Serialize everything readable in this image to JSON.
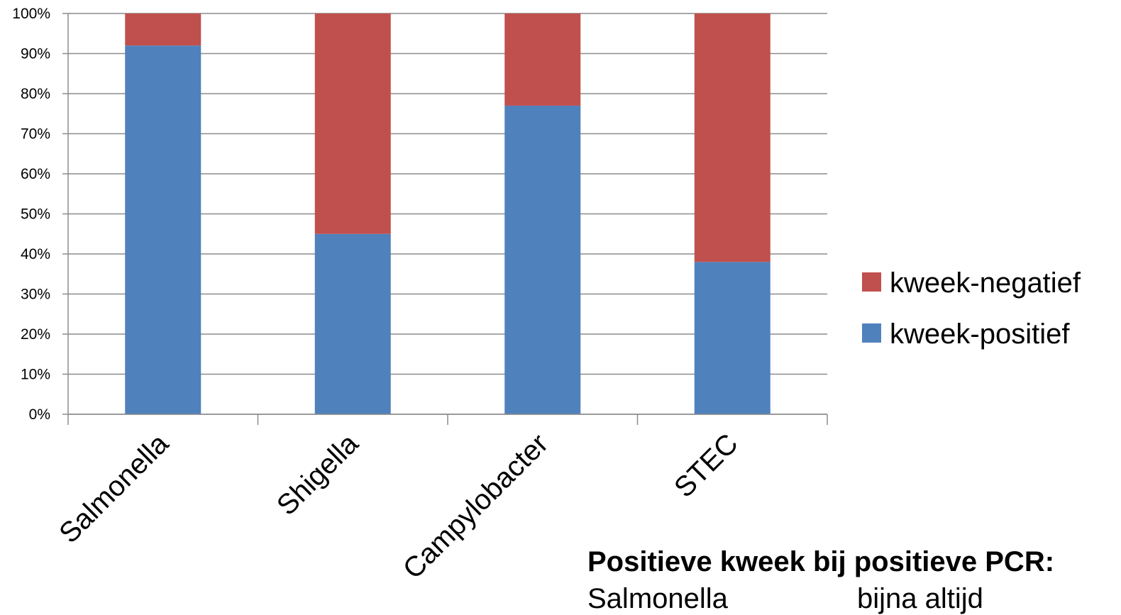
{
  "chart_data": {
    "type": "bar",
    "stacked": true,
    "categories": [
      "Salmonella",
      "Shigella",
      "Campylobacter",
      "STEC"
    ],
    "series": [
      {
        "name": "kweek-positief",
        "values": [
          92,
          45,
          77,
          38
        ],
        "color": "#4f81bd"
      },
      {
        "name": "kweek-negatief",
        "values": [
          8,
          55,
          23,
          62
        ],
        "color": "#c0504d"
      }
    ],
    "yticks": [
      "0%",
      "10%",
      "20%",
      "30%",
      "40%",
      "50%",
      "60%",
      "70%",
      "80%",
      "90%",
      "100%"
    ],
    "ylim": [
      0,
      100
    ],
    "grid": true,
    "legend_position": "right"
  },
  "note": {
    "heading": "Positieve kweek bij positieve PCR:",
    "lines": [
      {
        "label": "Salmonella",
        "value": "bijna altijd"
      }
    ]
  }
}
